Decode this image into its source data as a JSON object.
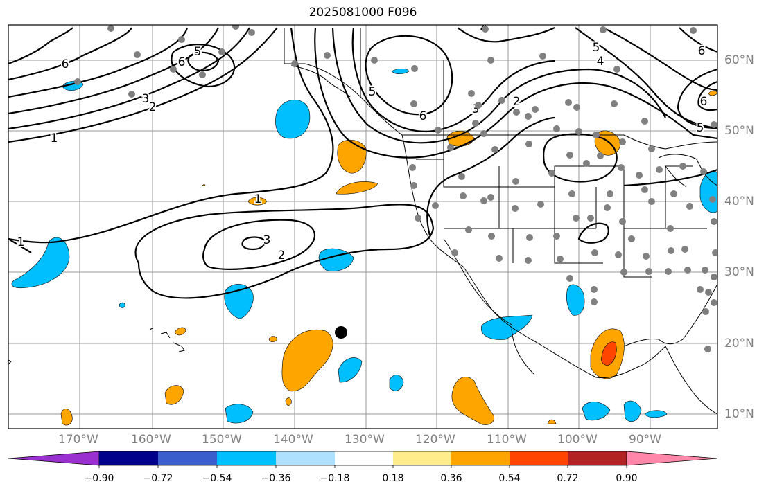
{
  "title": "2025081000 F096",
  "map": {
    "latitude_labels": [
      "60°N",
      "50°N",
      "40°N",
      "30°N",
      "20°N",
      "10°N"
    ],
    "longitude_labels": [
      "170°W",
      "160°W",
      "150°W",
      "140°W",
      "130°W",
      "120°W",
      "110°W",
      "100°W",
      "90°W"
    ],
    "contour_labels": [
      "1",
      "1",
      "1",
      "2",
      "2",
      "2",
      "3",
      "3",
      "3",
      "4",
      "4",
      "5",
      "5",
      "5",
      "5",
      "6",
      "6",
      "6",
      "6",
      "6"
    ],
    "colors": {
      "contour": "#000000",
      "grid": "#999999",
      "station": "#808080",
      "land_outline": "#000000"
    }
  },
  "colorbar": {
    "tick_labels": [
      "−0.90",
      "−0.72",
      "−0.54",
      "−0.36",
      "−0.18",
      "0.18",
      "0.36",
      "0.54",
      "0.72",
      "0.90"
    ],
    "colors": [
      "#9b30d0",
      "#00008b",
      "#3a5fcd",
      "#00bfff",
      "#aee0ff",
      "#ffffff",
      "#ffec8b",
      "#ffa500",
      "#ff4500",
      "#b22222",
      "#ff88aa"
    ]
  }
}
